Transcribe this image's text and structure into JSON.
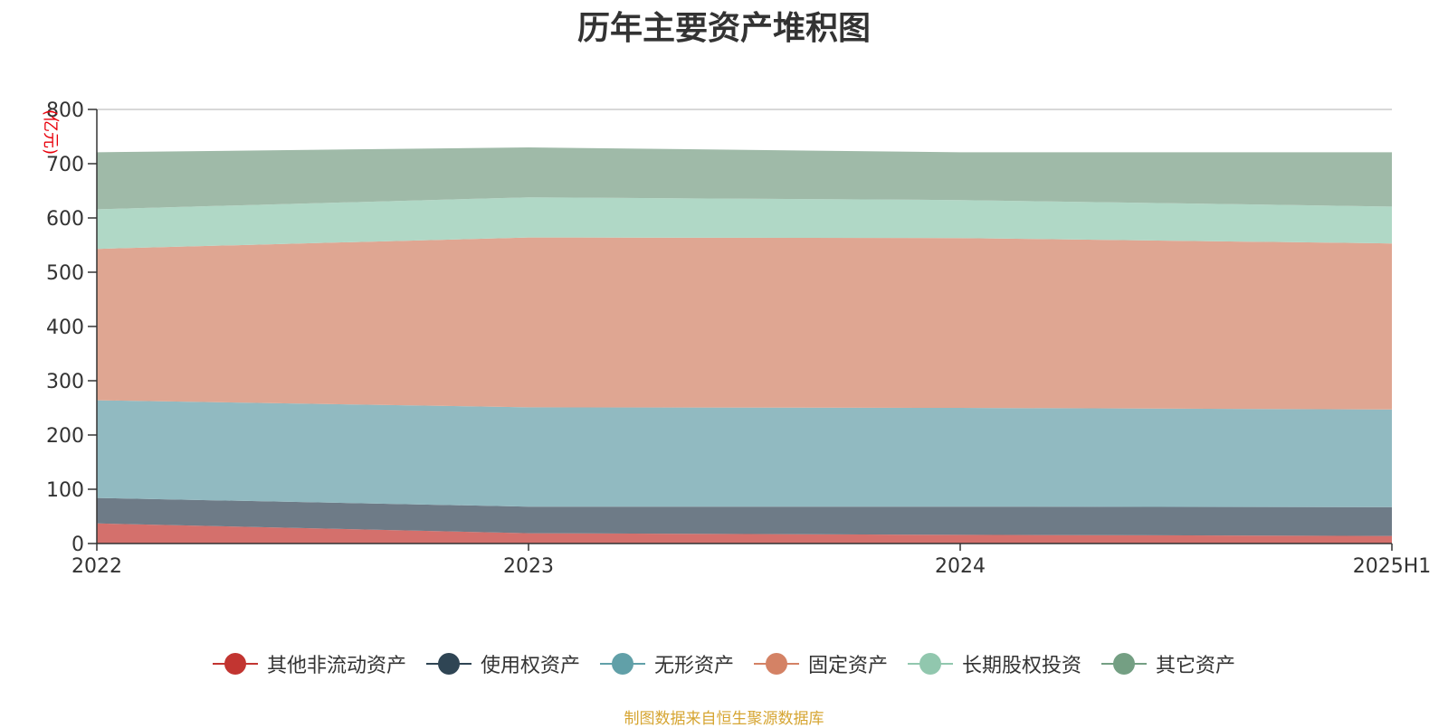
{
  "chart_data": {
    "type": "area",
    "stacked": true,
    "title": "历年主要资产堆积图",
    "unit_label": "(亿元)",
    "categories": [
      "2022",
      "2023",
      "2024",
      "2025H1"
    ],
    "ylim": [
      0,
      800
    ],
    "yticks": [
      0,
      100,
      200,
      300,
      400,
      500,
      600,
      700,
      800
    ],
    "grid": true,
    "legend_position": "bottom",
    "series": [
      {
        "name": "其他非流动资产",
        "color": "#c23531",
        "area_color": "#d4706c",
        "values": [
          37,
          19,
          16,
          14
        ]
      },
      {
        "name": "使用权资产",
        "color": "#2f4554",
        "area_color": "#6e7b87",
        "values": [
          47,
          49,
          52,
          53
        ]
      },
      {
        "name": "无形资产",
        "color": "#61a0a8",
        "area_color": "#91bac1",
        "values": [
          180,
          183,
          182,
          180
        ]
      },
      {
        "name": "固定资产",
        "color": "#d48265",
        "area_color": "#dfa692",
        "values": [
          279,
          313,
          313,
          306
        ]
      },
      {
        "name": "长期股权投资",
        "color": "#91c7ae",
        "area_color": "#b0d8c6",
        "values": [
          73,
          74,
          70,
          68
        ]
      },
      {
        "name": "其它资产",
        "color": "#749f83",
        "area_color": "#9fbaa8",
        "values": [
          105,
          92,
          88,
          100
        ]
      }
    ]
  },
  "source_note": "制图数据来自恒生聚源数据库"
}
